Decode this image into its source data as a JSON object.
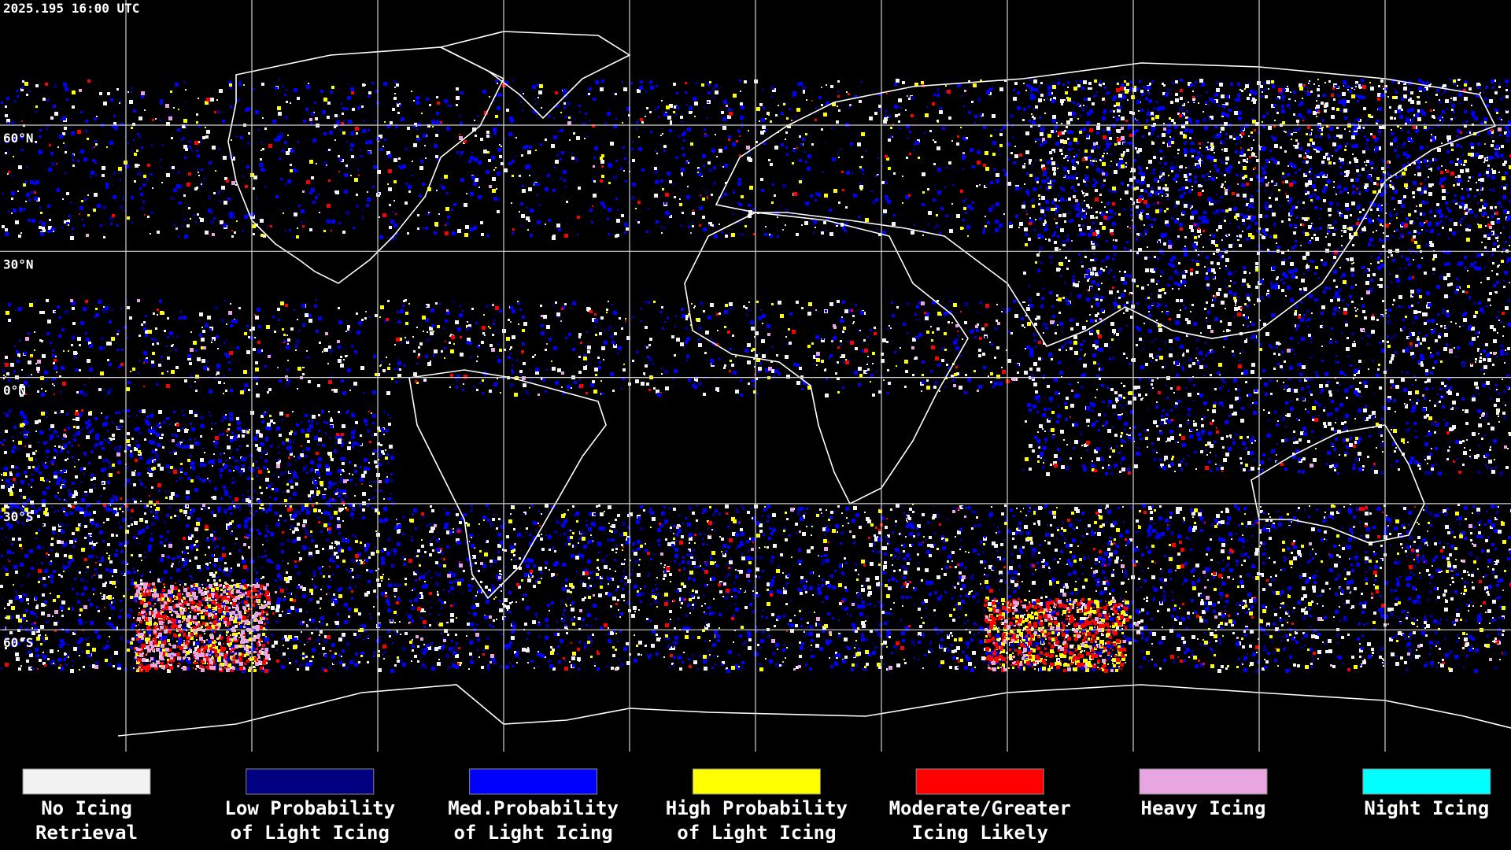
{
  "header": {
    "timestamp": "2025.195 16:00 UTC"
  },
  "latitude_labels": [
    "60°N",
    "30°N",
    "0°N",
    "30°S",
    "60°S"
  ],
  "legend": [
    {
      "lines": [
        "No Icing",
        "Retrieval"
      ],
      "color": "#f2f2f2"
    },
    {
      "lines": [
        "Low Probability",
        "of Light Icing"
      ],
      "color": "#000080"
    },
    {
      "lines": [
        "Med.Probability",
        "of Light Icing"
      ],
      "color": "#0000ff"
    },
    {
      "lines": [
        "High Probability",
        "of Light Icing"
      ],
      "color": "#ffff00"
    },
    {
      "lines": [
        "Moderate/Greater",
        "Icing Likely"
      ],
      "color": "#ff0000"
    },
    {
      "lines": [
        "Heavy Icing"
      ],
      "color": "#e8a6e0"
    },
    {
      "lines": [
        "Night Icing"
      ],
      "color": "#00ffff"
    }
  ]
}
